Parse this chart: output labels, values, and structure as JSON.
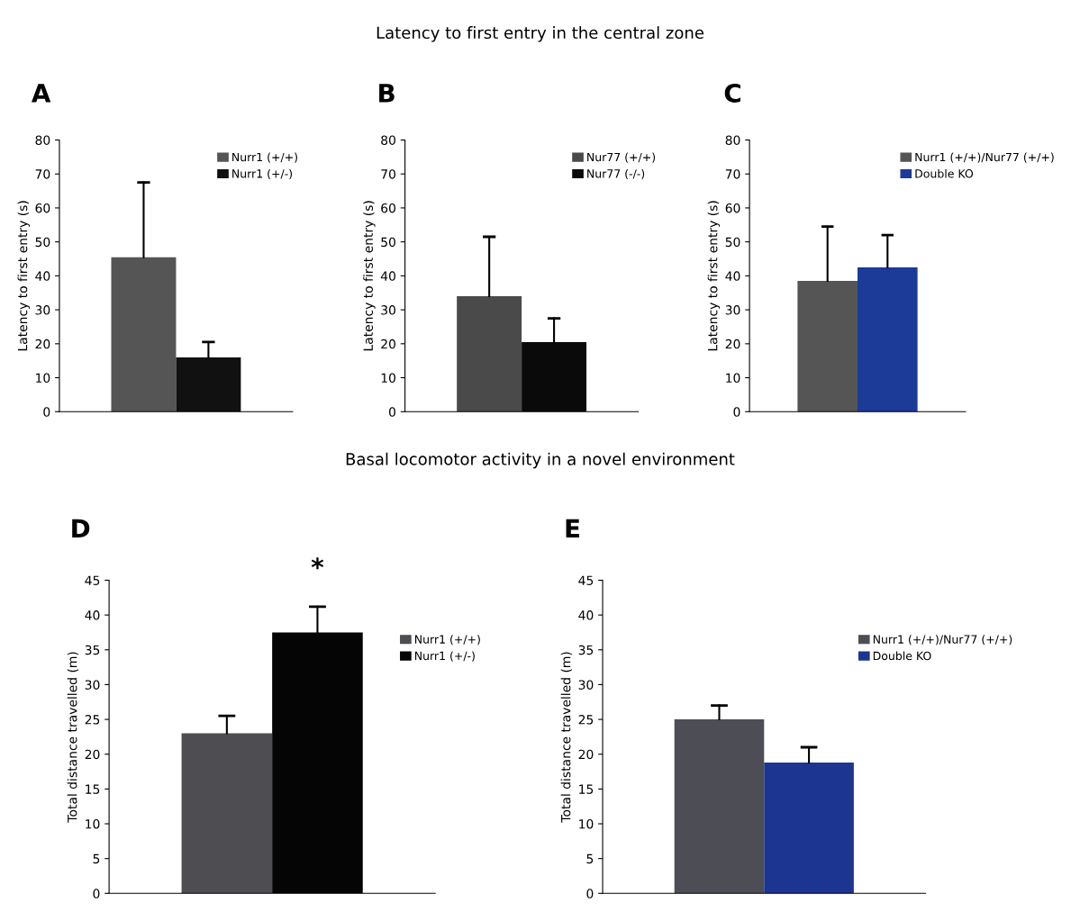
{
  "chart_data": [
    {
      "type": "bar",
      "title": "A",
      "annotations": [
        "Latency to first entry in the central zone"
      ],
      "ylabel": "Latency to first entry (s)",
      "categories": [
        null
      ],
      "ylim": [
        0,
        80
      ],
      "yticks": [
        0,
        10,
        20,
        30,
        40,
        50,
        60,
        70,
        80
      ],
      "grid": false,
      "legend": "right",
      "tick_labels": "y",
      "series": [
        {
          "name": "Nurr1 (+/+)",
          "color": "#555555",
          "values": [
            45.5
          ],
          "errors": [
            [
              45.5,
              67.5
            ]
          ]
        },
        {
          "name": "Nurr1 (+/-)",
          "color": "#111111",
          "values": [
            16
          ],
          "errors": [
            [
              16,
              20.5
            ]
          ]
        }
      ]
    },
    {
      "type": "bar",
      "title": "B",
      "ylabel": "Latency to first entry (s)",
      "categories": [
        null
      ],
      "ylim": [
        0,
        80
      ],
      "yticks": [
        0,
        10,
        20,
        30,
        40,
        50,
        60,
        70,
        80
      ],
      "grid": false,
      "legend": "right",
      "tick_labels": "y",
      "series": [
        {
          "name": "Nur77 (+/+)",
          "color": "#4a4a4a",
          "values": [
            34
          ],
          "errors": [
            [
              34,
              51.5
            ]
          ]
        },
        {
          "name": "Nur77 (-/-)",
          "color": "#0a0a0a",
          "values": [
            20.5
          ],
          "errors": [
            [
              20.5,
              27.5
            ]
          ]
        }
      ]
    },
    {
      "type": "bar",
      "title": "C",
      "ylabel": "Latency to first entry (s)",
      "categories": [
        null
      ],
      "ylim": [
        0,
        80
      ],
      "yticks": [
        0,
        10,
        20,
        30,
        40,
        50,
        60,
        70,
        80
      ],
      "grid": false,
      "legend": "right",
      "tick_labels": "y",
      "series": [
        {
          "name": "Nurr1 (+/+)/Nur77 (+/+)",
          "color": "#555555",
          "values": [
            38.5
          ],
          "errors": [
            [
              38.5,
              54.5
            ]
          ]
        },
        {
          "name": "Double KO",
          "color": "#1c3a98",
          "values": [
            42.5
          ],
          "errors": [
            [
              42.5,
              52
            ]
          ]
        }
      ]
    },
    {
      "type": "bar",
      "title": "D",
      "annotations": [
        "Basal locomotor activity in a novel environment",
        "*"
      ],
      "ylabel": "Total distance travelled (m)",
      "categories": [
        null
      ],
      "ylim": [
        0,
        45
      ],
      "yticks": [
        0,
        5,
        10,
        15,
        20,
        25,
        30,
        35,
        40,
        45
      ],
      "grid": false,
      "legend": "right",
      "tick_labels": "y",
      "series": [
        {
          "name": "Nurr1 (+/+)",
          "color": "#4d4d52",
          "values": [
            23
          ],
          "errors": [
            [
              23,
              25.5
            ]
          ]
        },
        {
          "name": "Nurr1 (+/-)",
          "color": "#050505",
          "values": [
            37.5
          ],
          "errors": [
            [
              37.5,
              41.2
            ]
          ]
        }
      ]
    },
    {
      "type": "bar",
      "title": "E",
      "ylabel": "Total distance travelled (m)",
      "categories": [
        null
      ],
      "ylim": [
        0,
        45
      ],
      "yticks": [
        0,
        5,
        10,
        15,
        20,
        25,
        30,
        35,
        40,
        45
      ],
      "grid": false,
      "legend": "right",
      "tick_labels": "y",
      "series": [
        {
          "name": "Nurr1 (+/+)/Nur77 (+/+)",
          "color": "#4d4e55",
          "values": [
            25
          ],
          "errors": [
            [
              25,
              27
            ]
          ]
        },
        {
          "name": "Double KO",
          "color": "#1b3590",
          "values": [
            18.8
          ],
          "errors": [
            [
              18.8,
              21
            ]
          ]
        }
      ]
    }
  ]
}
